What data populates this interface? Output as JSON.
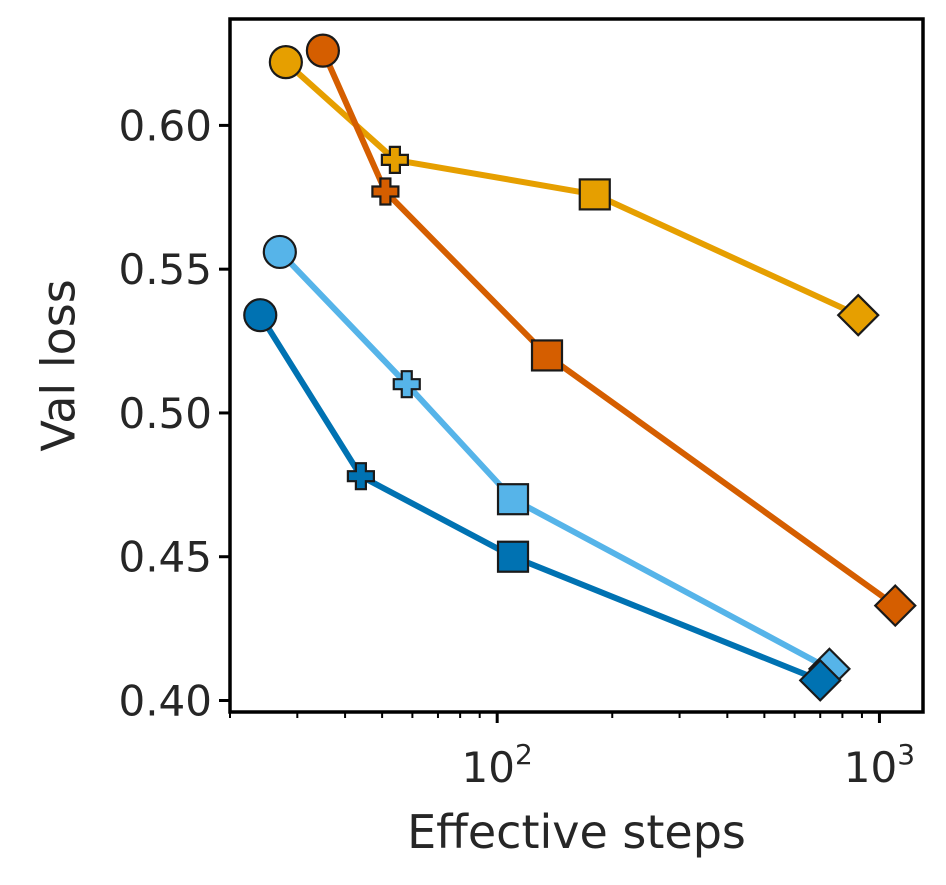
{
  "chart_data": {
    "type": "line",
    "xlabel": "Effective steps",
    "ylabel": "Val loss",
    "xscale": "log",
    "xlim": [
      20,
      1300
    ],
    "ylim": [
      0.396,
      0.637
    ],
    "grid": false,
    "legend": "none",
    "x_ticks": [
      {
        "value": 100,
        "base": "10",
        "exp": "2"
      },
      {
        "value": 1000,
        "base": "10",
        "exp": "3"
      }
    ],
    "y_ticks": [
      {
        "value": 0.4,
        "label": "0.40"
      },
      {
        "value": 0.45,
        "label": "0.45"
      },
      {
        "value": 0.5,
        "label": "0.50"
      },
      {
        "value": 0.55,
        "label": "0.55"
      },
      {
        "value": 0.6,
        "label": "0.60"
      }
    ],
    "markers": [
      "circle",
      "plus",
      "square",
      "diamond"
    ],
    "series": [
      {
        "color": "#E69F00",
        "x": [
          28,
          54,
          180,
          880
        ],
        "y": [
          0.622,
          0.588,
          0.576,
          0.534
        ]
      },
      {
        "color": "#D55E00",
        "x": [
          35,
          51,
          135,
          1100
        ],
        "y": [
          0.626,
          0.577,
          0.52,
          0.433
        ]
      },
      {
        "color": "#56B4E9",
        "x": [
          27,
          58,
          110,
          740
        ],
        "y": [
          0.556,
          0.51,
          0.47,
          0.411
        ]
      },
      {
        "color": "#0072B2",
        "x": [
          24,
          44,
          110,
          700
        ],
        "y": [
          0.534,
          0.478,
          0.45,
          0.407
        ]
      }
    ]
  }
}
